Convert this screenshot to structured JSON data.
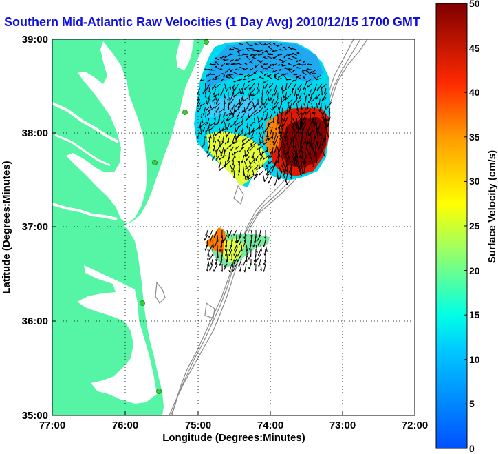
{
  "title": "Southern Mid-Atlantic Raw Velocities (1 Day Avg) 2010/12/15 1700 GMT",
  "axes": {
    "xlabel": "Longitude (Degrees:Minutes)",
    "ylabel": "Latitude (Degrees:Minutes)",
    "xticks": [
      "77:00",
      "76:00",
      "75:00",
      "74:00",
      "73:00",
      "72:00"
    ],
    "yticks": [
      "39:00",
      "38:00",
      "37:00",
      "36:00",
      "35:00"
    ]
  },
  "colorbar": {
    "label": "Surface Velocity (cm/s)",
    "ticks": [
      "50",
      "45",
      "40",
      "35",
      "30",
      "25",
      "20",
      "15",
      "10",
      "5",
      "0"
    ],
    "range": [
      0,
      50
    ]
  },
  "colors": {
    "land": "#55f5a5",
    "ocean": "#ffffff",
    "title": "#1010e0",
    "contour": "#8a8a8a",
    "station": "#3ccc3c"
  }
}
